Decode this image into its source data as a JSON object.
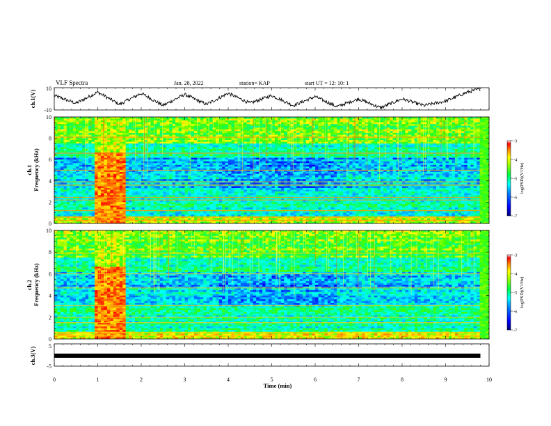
{
  "header": {
    "title": "VLF Spectra",
    "date": "Jan. 28, 2022",
    "station": "station= KAP",
    "start_ut": "start  UT =   12: 10: 1"
  },
  "colors": {
    "colormap": [
      "#000080",
      "#0000ff",
      "#0080ff",
      "#00ffff",
      "#00ff80",
      "#40ff00",
      "#ffff00",
      "#ff8000",
      "#ff0000",
      "#ffffff"
    ],
    "trace": "#000000"
  },
  "chart_data": [
    {
      "type": "line",
      "panel": "ch1-waveform",
      "ylabel": "ch.1(V)",
      "ylim": [
        -10,
        10
      ],
      "yticks": [
        "10",
        "-10"
      ],
      "x": [
        0,
        0.5,
        1,
        1.5,
        2,
        2.5,
        3,
        3.5,
        4,
        4.5,
        5,
        5.5,
        6,
        6.5,
        7,
        7.5,
        8,
        8.5,
        9,
        9.5,
        9.8
      ],
      "y": [
        3,
        -4,
        6,
        -5,
        5,
        -6,
        4,
        -5,
        5,
        -4,
        3,
        -6,
        2,
        -7,
        0,
        -8,
        0,
        -6,
        -2,
        6,
        9
      ]
    },
    {
      "type": "heatmap",
      "panel": "ch1-spectrogram",
      "ylabel_1": "ch.1",
      "ylabel_2": "Frequency (kHz)",
      "yticks": [
        "0",
        "2",
        "4",
        "6",
        "8",
        "10"
      ],
      "ylim": [
        0,
        10
      ],
      "xlim": [
        0,
        10
      ],
      "colorbar_label": "log(PSD)(V²/Hz)",
      "colorbar_ticks": [
        "-3",
        "-4",
        "-5",
        "-6",
        "-7"
      ],
      "color_range": [
        -7,
        -3
      ],
      "burst_interval_min": [
        0.95,
        1.65
      ],
      "noise_end_min": 9.8
    },
    {
      "type": "heatmap",
      "panel": "ch2-spectrogram",
      "ylabel_1": "ch.2",
      "ylabel_2": "Frequency (kHz)",
      "yticks": [
        "0",
        "2",
        "4",
        "6",
        "8",
        "10"
      ],
      "ylim": [
        0,
        10
      ],
      "xlim": [
        0,
        10
      ],
      "colorbar_label": "log(PSD)(V²/Hz)",
      "colorbar_ticks": [
        "-3",
        "-4",
        "-5",
        "-6",
        "-7"
      ],
      "color_range": [
        -7,
        -3
      ],
      "burst_interval_min": [
        0.95,
        1.65
      ],
      "noise_end_min": 9.8
    },
    {
      "type": "line",
      "panel": "ch3-waveform",
      "ylabel": "ch.3(V)",
      "ylim": [
        -5,
        5
      ],
      "yticks": [
        "5",
        "-5"
      ],
      "x": [
        0,
        9.8
      ],
      "y": [
        0,
        0
      ]
    }
  ],
  "x_axis": {
    "label": "Time (min)",
    "ticks": [
      "0",
      "1",
      "2",
      "3",
      "4",
      "5",
      "6",
      "7",
      "8",
      "9",
      "10"
    ],
    "xlim": [
      0,
      10
    ]
  }
}
